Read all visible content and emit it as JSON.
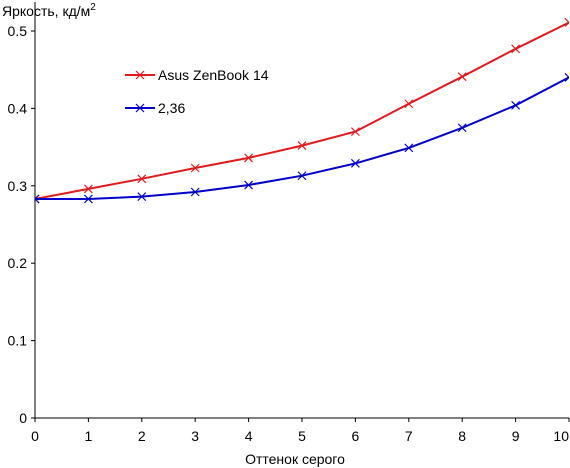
{
  "chart_data": {
    "type": "line",
    "title": "",
    "ylabel": "Яркость, кд/м",
    "ylabel_sup": "2",
    "xlabel": "Оттенок серого",
    "x": [
      0,
      1,
      2,
      3,
      4,
      5,
      6,
      7,
      8,
      9,
      10
    ],
    "xlim": [
      0,
      10
    ],
    "ylim": [
      0,
      0.5
    ],
    "x_ticks": [
      "0",
      "1",
      "2",
      "3",
      "4",
      "5",
      "6",
      "7",
      "8",
      "9",
      "10"
    ],
    "y_ticks": [
      {
        "value": 0,
        "label": "0"
      },
      {
        "value": 0.1,
        "label": "0.1"
      },
      {
        "value": 0.2,
        "label": "0.2"
      },
      {
        "value": 0.3,
        "label": "0.3"
      },
      {
        "value": 0.4,
        "label": "0.4"
      },
      {
        "value": 0.5,
        "label": "0.5"
      }
    ],
    "grid": false,
    "legend_position": "top-left",
    "series": [
      {
        "name": "Asus ZenBook 14",
        "color": "#e31a1c",
        "marker": "x",
        "values": [
          0.283,
          0.296,
          0.309,
          0.323,
          0.336,
          0.352,
          0.37,
          0.406,
          0.441,
          0.477,
          0.511
        ]
      },
      {
        "name": "2,36",
        "color": "#0000cc",
        "marker": "x",
        "values": [
          0.283,
          0.283,
          0.286,
          0.292,
          0.301,
          0.313,
          0.329,
          0.349,
          0.375,
          0.404,
          0.44
        ]
      }
    ]
  }
}
